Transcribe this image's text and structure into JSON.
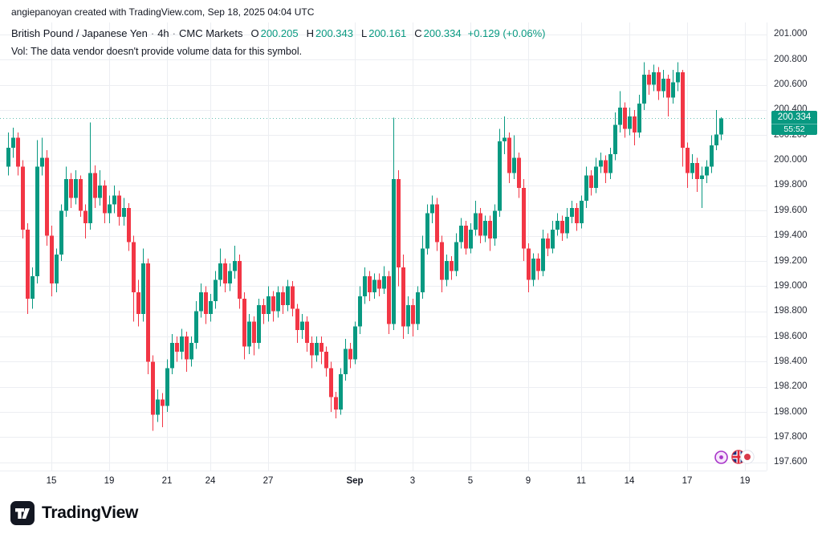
{
  "topbar": {
    "attribution": "angiepanoyan created with TradingView.com, Sep 18, 2025 04:04 UTC"
  },
  "legend": {
    "symbol": "British Pound / Japanese Yen",
    "separator": "·",
    "interval": "4h",
    "exchange": "CMC Markets",
    "open_label": "O",
    "open": "200.205",
    "high_label": "H",
    "high": "200.343",
    "low_label": "L",
    "low": "200.161",
    "close_label": "C",
    "close": "200.334",
    "change": "+0.129 (+0.06%)",
    "volume_note": "Vol: The data vendor doesn't provide volume data for this symbol."
  },
  "price_scale": {
    "last_price": "200.334",
    "countdown": "55:52"
  },
  "footer": {
    "brand": "TradingView"
  },
  "colors": {
    "up": "#089981",
    "down": "#f23645",
    "grid": "#eceef2",
    "text": "#131722",
    "badge_bg": "#089981"
  },
  "icons": {
    "logo": "tradingview-logo",
    "marker": "event-marker",
    "base_flag": "gbp-flag",
    "quote_flag": "jpy-flag"
  },
  "chart_data": {
    "type": "candlestick",
    "title": "British Pound / Japanese Yen",
    "interval": "4h",
    "provider": "CMC Markets",
    "last": {
      "o": 200.205,
      "h": 200.343,
      "l": 200.161,
      "c": 200.334,
      "change": 0.129,
      "change_pct": 0.06
    },
    "ylim": [
      197.535,
      201.095
    ],
    "y_ticks": [
      "201.000",
      "200.800",
      "200.600",
      "200.400",
      "200.200",
      "200.000",
      "199.800",
      "199.600",
      "199.400",
      "199.200",
      "199.000",
      "198.800",
      "198.600",
      "198.400",
      "198.200",
      "198.000",
      "197.800",
      "197.600"
    ],
    "x_start": 10,
    "x_step": 6,
    "x_labels": [
      {
        "label": "15",
        "i": 9
      },
      {
        "label": "19",
        "i": 21
      },
      {
        "label": "21",
        "i": 33
      },
      {
        "label": "24",
        "i": 42
      },
      {
        "label": "27",
        "i": 54
      },
      {
        "label": "Sep",
        "i": 72,
        "major": true
      },
      {
        "label": "3",
        "i": 84
      },
      {
        "label": "5",
        "i": 96
      },
      {
        "label": "9",
        "i": 108
      },
      {
        "label": "11",
        "i": 119
      },
      {
        "label": "14",
        "i": 129
      },
      {
        "label": "17",
        "i": 141
      },
      {
        "label": "19",
        "i": 153
      }
    ],
    "candles": [
      [
        199.95,
        200.22,
        199.88,
        200.1
      ],
      [
        200.1,
        200.26,
        200.02,
        200.18
      ],
      [
        200.18,
        200.22,
        199.88,
        199.95
      ],
      [
        199.95,
        200.0,
        199.38,
        199.45
      ],
      [
        199.45,
        199.5,
        198.78,
        198.9
      ],
      [
        198.9,
        199.15,
        198.82,
        199.08
      ],
      [
        199.08,
        200.16,
        199.02,
        199.95
      ],
      [
        199.95,
        200.18,
        199.88,
        200.02
      ],
      [
        200.02,
        200.08,
        199.32,
        199.4
      ],
      [
        199.4,
        199.48,
        198.92,
        199.02
      ],
      [
        199.02,
        199.3,
        198.95,
        199.25
      ],
      [
        199.25,
        199.65,
        199.2,
        199.6
      ],
      [
        199.6,
        199.95,
        199.55,
        199.85
      ],
      [
        199.85,
        199.9,
        199.62,
        199.7
      ],
      [
        199.7,
        199.92,
        199.65,
        199.85
      ],
      [
        199.85,
        199.88,
        199.55,
        199.6
      ],
      [
        199.6,
        199.65,
        199.38,
        199.5
      ],
      [
        199.5,
        200.3,
        199.45,
        199.9
      ],
      [
        199.9,
        199.96,
        199.62,
        199.7
      ],
      [
        199.7,
        199.92,
        199.64,
        199.8
      ],
      [
        199.8,
        199.84,
        199.5,
        199.58
      ],
      [
        199.58,
        199.72,
        199.5,
        199.65
      ],
      [
        199.65,
        199.8,
        199.58,
        199.72
      ],
      [
        199.72,
        199.76,
        199.48,
        199.55
      ],
      [
        199.55,
        199.7,
        199.48,
        199.62
      ],
      [
        199.62,
        199.66,
        199.28,
        199.35
      ],
      [
        199.35,
        199.4,
        198.72,
        198.95
      ],
      [
        198.95,
        199.05,
        198.68,
        198.78
      ],
      [
        198.78,
        199.3,
        198.72,
        199.18
      ],
      [
        199.18,
        199.22,
        198.3,
        198.4
      ],
      [
        198.4,
        198.45,
        197.85,
        197.98
      ],
      [
        197.98,
        198.18,
        197.92,
        198.1
      ],
      [
        198.1,
        198.15,
        197.88,
        198.05
      ],
      [
        198.05,
        198.42,
        198.0,
        198.35
      ],
      [
        198.35,
        198.62,
        198.3,
        198.55
      ],
      [
        198.55,
        198.6,
        198.4,
        198.48
      ],
      [
        198.48,
        198.66,
        198.42,
        198.6
      ],
      [
        198.6,
        198.64,
        198.32,
        198.42
      ],
      [
        198.42,
        198.6,
        198.36,
        198.55
      ],
      [
        198.55,
        198.88,
        198.5,
        198.8
      ],
      [
        198.8,
        199.02,
        198.75,
        198.95
      ],
      [
        198.95,
        199.0,
        198.7,
        198.78
      ],
      [
        198.78,
        198.94,
        198.72,
        198.88
      ],
      [
        198.88,
        199.12,
        198.82,
        199.05
      ],
      [
        199.05,
        199.3,
        199.0,
        199.18
      ],
      [
        199.18,
        199.22,
        198.95,
        199.02
      ],
      [
        199.02,
        199.18,
        198.96,
        199.12
      ],
      [
        199.12,
        199.32,
        199.06,
        199.2
      ],
      [
        199.2,
        199.25,
        198.82,
        198.9
      ],
      [
        198.9,
        198.95,
        198.42,
        198.52
      ],
      [
        198.52,
        198.78,
        198.46,
        198.72
      ],
      [
        198.72,
        198.76,
        198.45,
        198.55
      ],
      [
        198.55,
        198.9,
        198.5,
        198.85
      ],
      [
        198.85,
        198.9,
        198.7,
        198.78
      ],
      [
        198.78,
        199.0,
        198.72,
        198.92
      ],
      [
        198.92,
        198.96,
        198.72,
        198.8
      ],
      [
        198.8,
        199.0,
        198.75,
        198.95
      ],
      [
        198.95,
        199.0,
        198.78,
        198.85
      ],
      [
        198.85,
        199.05,
        198.8,
        199.0
      ],
      [
        199.0,
        199.04,
        198.76,
        198.82
      ],
      [
        198.82,
        198.86,
        198.55,
        198.65
      ],
      [
        198.65,
        198.78,
        198.58,
        198.72
      ],
      [
        198.72,
        198.76,
        198.48,
        198.55
      ],
      [
        198.55,
        198.6,
        198.35,
        198.45
      ],
      [
        198.45,
        198.6,
        198.4,
        198.55
      ],
      [
        198.55,
        198.6,
        198.38,
        198.48
      ],
      [
        198.48,
        198.52,
        198.28,
        198.35
      ],
      [
        198.35,
        198.4,
        198.0,
        198.12
      ],
      [
        198.12,
        198.16,
        197.95,
        198.02
      ],
      [
        198.02,
        198.35,
        197.98,
        198.3
      ],
      [
        198.3,
        198.58,
        198.25,
        198.5
      ],
      [
        198.5,
        198.55,
        198.35,
        198.42
      ],
      [
        198.42,
        198.72,
        198.38,
        198.68
      ],
      [
        198.68,
        199.0,
        198.62,
        198.92
      ],
      [
        198.92,
        199.15,
        198.86,
        199.08
      ],
      [
        199.08,
        199.12,
        198.88,
        198.95
      ],
      [
        198.95,
        199.1,
        198.9,
        199.05
      ],
      [
        199.05,
        199.1,
        198.92,
        198.98
      ],
      [
        198.98,
        199.16,
        198.94,
        199.08
      ],
      [
        199.08,
        199.12,
        198.62,
        198.7
      ],
      [
        198.7,
        200.34,
        198.65,
        199.85
      ],
      [
        199.85,
        199.92,
        199.0,
        199.15
      ],
      [
        199.15,
        199.25,
        198.58,
        198.68
      ],
      [
        198.68,
        198.92,
        198.62,
        198.85
      ],
      [
        198.85,
        198.9,
        198.6,
        198.7
      ],
      [
        198.7,
        199.0,
        198.65,
        198.95
      ],
      [
        198.95,
        199.4,
        198.9,
        199.3
      ],
      [
        199.3,
        199.65,
        199.25,
        199.58
      ],
      [
        199.58,
        199.72,
        199.5,
        199.65
      ],
      [
        199.65,
        199.7,
        199.28,
        199.35
      ],
      [
        199.35,
        199.4,
        198.95,
        199.05
      ],
      [
        199.05,
        199.25,
        199.0,
        199.2
      ],
      [
        199.2,
        199.24,
        199.05,
        199.12
      ],
      [
        199.12,
        199.42,
        199.08,
        199.35
      ],
      [
        199.35,
        199.54,
        199.3,
        199.48
      ],
      [
        199.48,
        199.52,
        199.25,
        199.3
      ],
      [
        199.3,
        199.5,
        199.26,
        199.45
      ],
      [
        199.45,
        199.68,
        199.4,
        199.58
      ],
      [
        199.58,
        199.62,
        199.34,
        199.4
      ],
      [
        199.4,
        199.56,
        199.35,
        199.52
      ],
      [
        199.52,
        199.56,
        199.28,
        199.38
      ],
      [
        199.38,
        199.65,
        199.32,
        199.6
      ],
      [
        199.6,
        200.25,
        199.55,
        200.15
      ],
      [
        200.15,
        200.35,
        200.05,
        200.18
      ],
      [
        200.18,
        200.22,
        199.82,
        199.9
      ],
      [
        199.9,
        200.2,
        199.85,
        200.02
      ],
      [
        200.02,
        200.06,
        199.7,
        199.78
      ],
      [
        199.78,
        199.85,
        199.2,
        199.3
      ],
      [
        199.3,
        199.34,
        198.95,
        199.05
      ],
      [
        199.05,
        199.26,
        199.0,
        199.22
      ],
      [
        199.22,
        199.26,
        199.05,
        199.12
      ],
      [
        199.12,
        199.45,
        199.08,
        199.38
      ],
      [
        199.38,
        199.42,
        199.24,
        199.3
      ],
      [
        199.3,
        199.52,
        199.26,
        199.45
      ],
      [
        199.45,
        199.58,
        199.4,
        199.52
      ],
      [
        199.52,
        199.56,
        199.36,
        199.42
      ],
      [
        199.42,
        199.62,
        199.38,
        199.55
      ],
      [
        199.55,
        199.68,
        199.5,
        199.62
      ],
      [
        199.62,
        199.66,
        199.44,
        199.5
      ],
      [
        199.5,
        199.72,
        199.46,
        199.68
      ],
      [
        199.68,
        199.95,
        199.62,
        199.88
      ],
      [
        199.88,
        199.92,
        199.72,
        199.78
      ],
      [
        199.78,
        200.02,
        199.74,
        199.95
      ],
      [
        199.95,
        200.06,
        199.9,
        200.0
      ],
      [
        200.0,
        200.04,
        199.82,
        199.9
      ],
      [
        199.9,
        200.1,
        199.85,
        200.05
      ],
      [
        200.05,
        200.38,
        200.0,
        200.28
      ],
      [
        200.28,
        200.55,
        200.22,
        200.42
      ],
      [
        200.42,
        200.46,
        200.18,
        200.25
      ],
      [
        200.25,
        200.42,
        200.2,
        200.35
      ],
      [
        200.35,
        200.4,
        200.12,
        200.22
      ],
      [
        200.22,
        200.52,
        200.18,
        200.45
      ],
      [
        200.45,
        200.78,
        200.4,
        200.68
      ],
      [
        200.68,
        200.72,
        200.52,
        200.6
      ],
      [
        200.6,
        200.76,
        200.55,
        200.7
      ],
      [
        200.7,
        200.74,
        200.48,
        200.55
      ],
      [
        200.55,
        200.72,
        200.5,
        200.65
      ],
      [
        200.65,
        200.68,
        200.35,
        200.5
      ],
      [
        200.5,
        200.72,
        200.45,
        200.62
      ],
      [
        200.62,
        200.78,
        200.55,
        200.7
      ],
      [
        200.7,
        200.72,
        199.95,
        200.1
      ],
      [
        200.1,
        200.14,
        199.78,
        199.9
      ],
      [
        199.9,
        200.05,
        199.85,
        199.98
      ],
      [
        199.98,
        200.02,
        199.75,
        199.85
      ],
      [
        199.85,
        199.95,
        199.62,
        199.88
      ],
      [
        199.88,
        200.0,
        199.82,
        199.95
      ],
      [
        199.95,
        200.2,
        199.9,
        200.12
      ],
      [
        200.12,
        200.4,
        200.08,
        200.205
      ],
      [
        200.205,
        200.343,
        200.161,
        200.334
      ]
    ]
  }
}
